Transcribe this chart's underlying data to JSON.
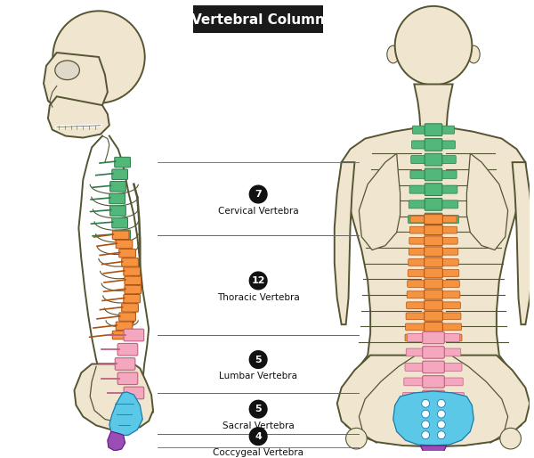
{
  "title": "Vertebral Column",
  "title_bg": "#1a1a1a",
  "title_color": "#ffffff",
  "title_fontsize": 11,
  "bg_color": "#ffffff",
  "skin_fill": "#f0e6d0",
  "skin_edge": "#555533",
  "bone_edge": "#333311",
  "sections": [
    {
      "number": "7",
      "label": "Cervical Vertebra",
      "color": "#52b87a",
      "edge": "#2d7a4a"
    },
    {
      "number": "12",
      "label": "Thoracic Vertebra",
      "color": "#f59340",
      "edge": "#b05010"
    },
    {
      "number": "5",
      "label": "Lumbar Vertebra",
      "color": "#f4a8c0",
      "edge": "#c06080"
    },
    {
      "number": "5",
      "label": "Sacral Vertebra",
      "color": "#5bc8e8",
      "edge": "#1a7aaa"
    },
    {
      "number": "4",
      "label": "Coccygeal Vertebra",
      "color": "#9b4db6",
      "edge": "#6a1a8a"
    }
  ],
  "num_circle_color": "#111111",
  "num_text_color": "#ffffff",
  "label_fontsize": 7.5,
  "num_fontsize": 8,
  "lw_body": 1.4,
  "lw_rib": 0.8,
  "lw_label": 0.6
}
